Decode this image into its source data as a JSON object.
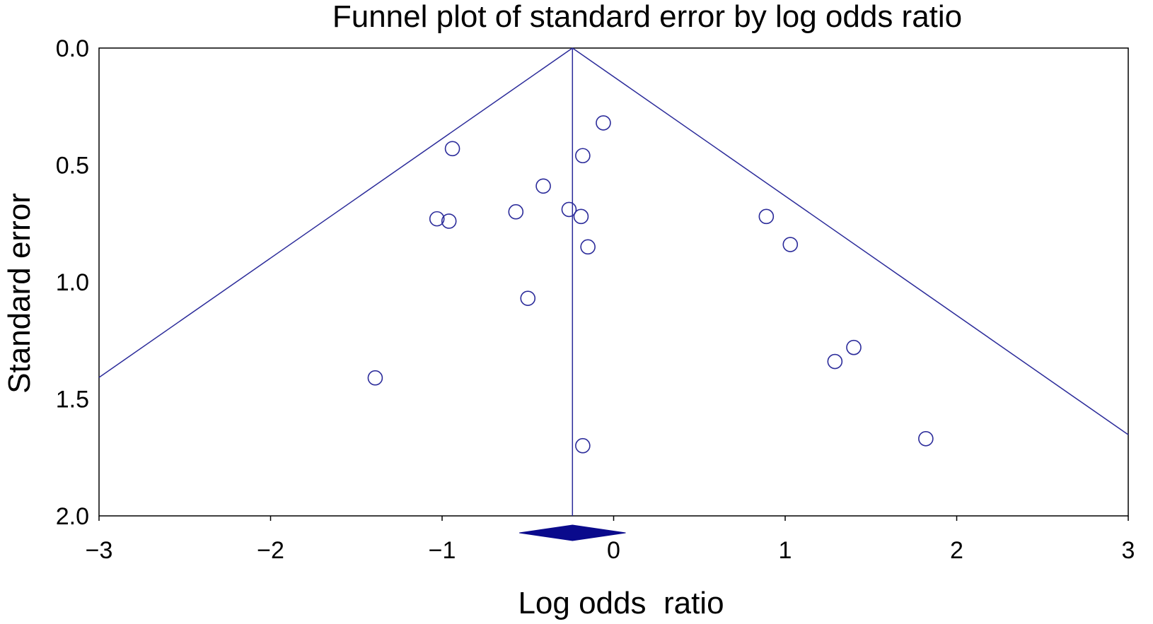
{
  "chart_data": {
    "type": "scatter",
    "title": "Funnel plot of standard error by log odds ratio",
    "xlabel": "Log odds  ratio",
    "ylabel": "Standard error",
    "xlim": [
      -3,
      3
    ],
    "ylim": [
      0,
      2
    ],
    "y_inverted": true,
    "xticks": [
      -3,
      -2,
      -1,
      0,
      1,
      2,
      3
    ],
    "xtick_labels": [
      "−3",
      "−2",
      "−1",
      "0",
      "1",
      "2",
      "3"
    ],
    "yticks": [
      0,
      0.5,
      1,
      1.5,
      2
    ],
    "ytick_labels": [
      "0.0",
      "0.5",
      "1.0",
      "1.5",
      "2.0"
    ],
    "grid": false,
    "pooled_estimate": -0.24,
    "pooled_ci": [
      -0.55,
      0.07
    ],
    "funnel_multiplier": 1.96,
    "points": [
      {
        "x": -0.06,
        "y": 0.32
      },
      {
        "x": -0.94,
        "y": 0.43
      },
      {
        "x": -0.18,
        "y": 0.46
      },
      {
        "x": -0.41,
        "y": 0.59
      },
      {
        "x": -0.57,
        "y": 0.7
      },
      {
        "x": -0.26,
        "y": 0.69
      },
      {
        "x": -0.19,
        "y": 0.72
      },
      {
        "x": -1.03,
        "y": 0.73
      },
      {
        "x": -0.96,
        "y": 0.74
      },
      {
        "x": -0.15,
        "y": 0.85
      },
      {
        "x": 0.89,
        "y": 0.72
      },
      {
        "x": 1.03,
        "y": 0.84
      },
      {
        "x": -0.5,
        "y": 1.07
      },
      {
        "x": 1.4,
        "y": 1.28
      },
      {
        "x": 1.29,
        "y": 1.34
      },
      {
        "x": -1.39,
        "y": 1.41
      },
      {
        "x": -0.18,
        "y": 1.7
      },
      {
        "x": 1.82,
        "y": 1.67
      }
    ],
    "colors": {
      "lines": "#2b2b9a",
      "markers": "#2b2b9a",
      "diamond": "#0a0a8c",
      "frame": "#000000"
    }
  }
}
